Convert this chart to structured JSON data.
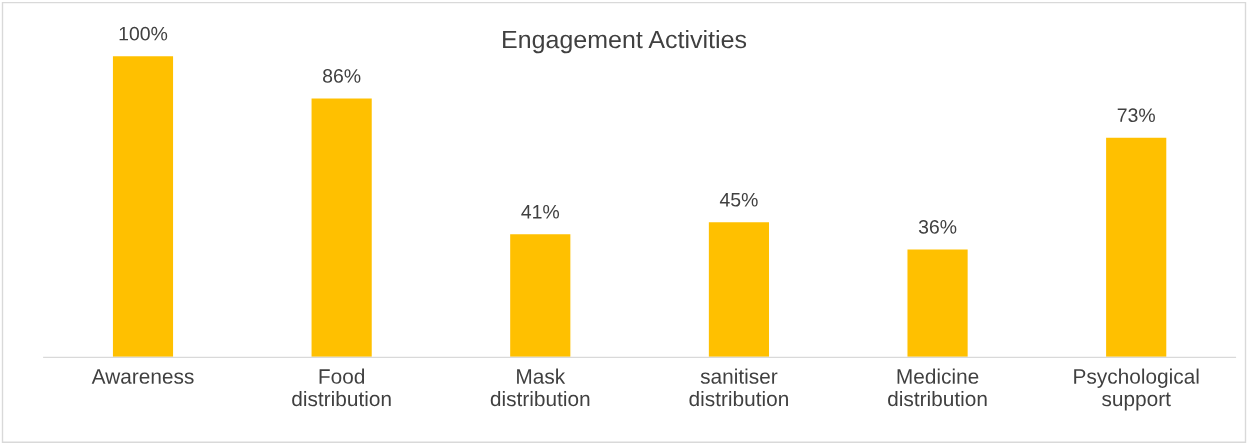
{
  "chart_data": {
    "type": "bar",
    "title": "Engagement Activities",
    "categories": [
      "Awareness",
      "Food\ndistribution",
      "Mask\ndistribution",
      "sanitiser\ndistribution",
      "Medicine\ndistribution",
      "Psychological\nsupport"
    ],
    "values": [
      100,
      86,
      41,
      45,
      36,
      73
    ],
    "value_labels": [
      "100%",
      "86%",
      "41%",
      "45%",
      "36%",
      "73%"
    ],
    "color": "#ffc000",
    "grid": false,
    "legend": false
  }
}
